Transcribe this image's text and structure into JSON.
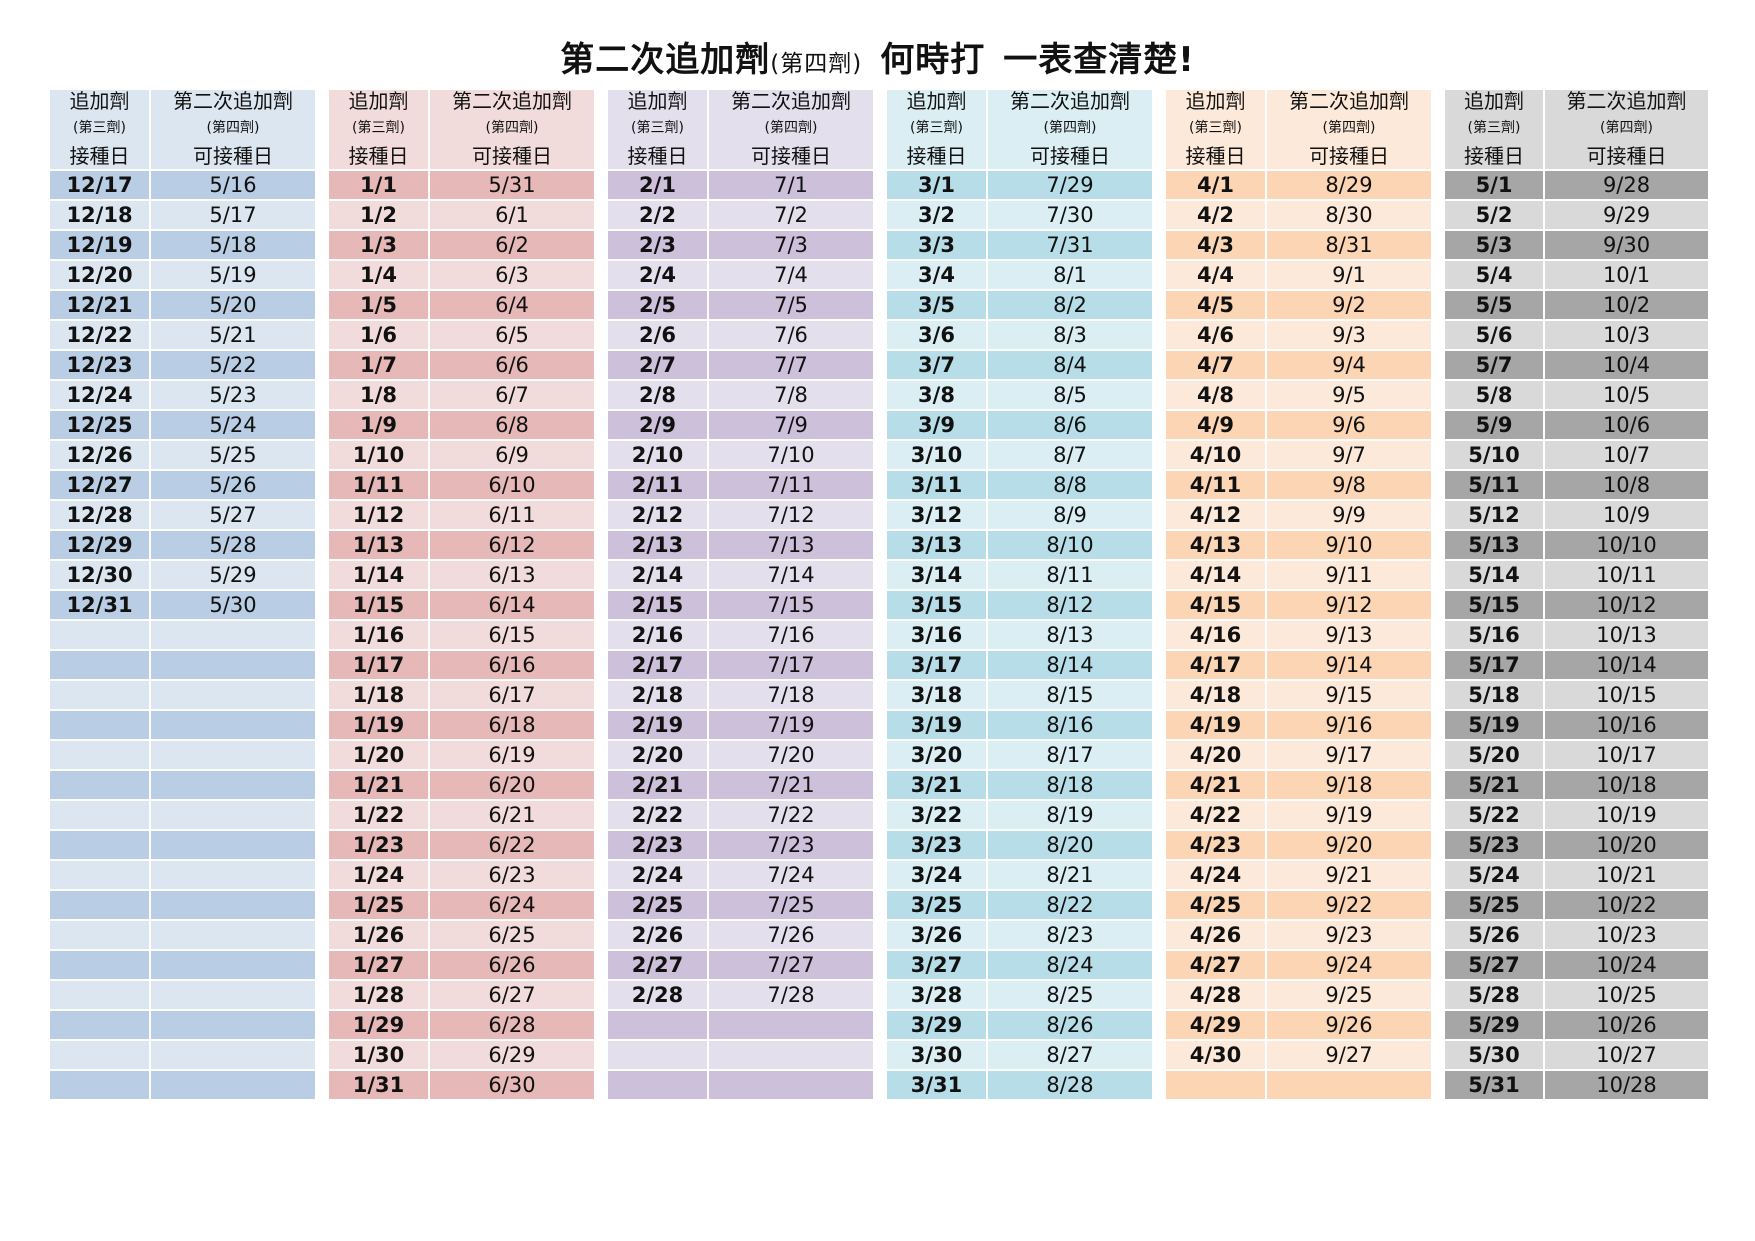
{
  "title": {
    "main": "第二次追加劑",
    "paren": "(第四劑)",
    "part2": "何時打",
    "part3": "一表查清楚!"
  },
  "header": {
    "c1_line1": "追加劑",
    "c1_line2": "(第三劑)",
    "c1_line3": "接種日",
    "c2_line1": "第二次追加劑",
    "c2_line2": "(第四劑)",
    "c2_line3": "可接種日"
  },
  "colors": {
    "dec": {
      "odd": "#b9cde4",
      "even": "#dce6f1"
    },
    "jan": {
      "odd": "#e6b9b8",
      "even": "#f2dcdb"
    },
    "feb": {
      "odd": "#ccc0da",
      "even": "#e4dfec"
    },
    "mar": {
      "odd": "#b7dee8",
      "even": "#daeef3"
    },
    "apr": {
      "odd": "#fcd5b4",
      "even": "#fde9d9"
    },
    "may": {
      "odd": "#a6a6a6",
      "even": "#d9d9d9"
    }
  },
  "groups": [
    {
      "key": "dec",
      "rows": [
        [
          "12/17",
          "5/16"
        ],
        [
          "12/18",
          "5/17"
        ],
        [
          "12/19",
          "5/18"
        ],
        [
          "12/20",
          "5/19"
        ],
        [
          "12/21",
          "5/20"
        ],
        [
          "12/22",
          "5/21"
        ],
        [
          "12/23",
          "5/22"
        ],
        [
          "12/24",
          "5/23"
        ],
        [
          "12/25",
          "5/24"
        ],
        [
          "12/26",
          "5/25"
        ],
        [
          "12/27",
          "5/26"
        ],
        [
          "12/28",
          "5/27"
        ],
        [
          "12/29",
          "5/28"
        ],
        [
          "12/30",
          "5/29"
        ],
        [
          "12/31",
          "5/30"
        ],
        [
          "",
          ""
        ],
        [
          "",
          ""
        ],
        [
          "",
          ""
        ],
        [
          "",
          ""
        ],
        [
          "",
          ""
        ],
        [
          "",
          ""
        ],
        [
          "",
          ""
        ],
        [
          "",
          ""
        ],
        [
          "",
          ""
        ],
        [
          "",
          ""
        ],
        [
          "",
          ""
        ],
        [
          "",
          ""
        ],
        [
          "",
          ""
        ],
        [
          "",
          ""
        ],
        [
          "",
          ""
        ],
        [
          "",
          ""
        ]
      ]
    },
    {
      "key": "jan",
      "rows": [
        [
          "1/1",
          "5/31"
        ],
        [
          "1/2",
          "6/1"
        ],
        [
          "1/3",
          "6/2"
        ],
        [
          "1/4",
          "6/3"
        ],
        [
          "1/5",
          "6/4"
        ],
        [
          "1/6",
          "6/5"
        ],
        [
          "1/7",
          "6/6"
        ],
        [
          "1/8",
          "6/7"
        ],
        [
          "1/9",
          "6/8"
        ],
        [
          "1/10",
          "6/9"
        ],
        [
          "1/11",
          "6/10"
        ],
        [
          "1/12",
          "6/11"
        ],
        [
          "1/13",
          "6/12"
        ],
        [
          "1/14",
          "6/13"
        ],
        [
          "1/15",
          "6/14"
        ],
        [
          "1/16",
          "6/15"
        ],
        [
          "1/17",
          "6/16"
        ],
        [
          "1/18",
          "6/17"
        ],
        [
          "1/19",
          "6/18"
        ],
        [
          "1/20",
          "6/19"
        ],
        [
          "1/21",
          "6/20"
        ],
        [
          "1/22",
          "6/21"
        ],
        [
          "1/23",
          "6/22"
        ],
        [
          "1/24",
          "6/23"
        ],
        [
          "1/25",
          "6/24"
        ],
        [
          "1/26",
          "6/25"
        ],
        [
          "1/27",
          "6/26"
        ],
        [
          "1/28",
          "6/27"
        ],
        [
          "1/29",
          "6/28"
        ],
        [
          "1/30",
          "6/29"
        ],
        [
          "1/31",
          "6/30"
        ]
      ]
    },
    {
      "key": "feb",
      "rows": [
        [
          "2/1",
          "7/1"
        ],
        [
          "2/2",
          "7/2"
        ],
        [
          "2/3",
          "7/3"
        ],
        [
          "2/4",
          "7/4"
        ],
        [
          "2/5",
          "7/5"
        ],
        [
          "2/6",
          "7/6"
        ],
        [
          "2/7",
          "7/7"
        ],
        [
          "2/8",
          "7/8"
        ],
        [
          "2/9",
          "7/9"
        ],
        [
          "2/10",
          "7/10"
        ],
        [
          "2/11",
          "7/11"
        ],
        [
          "2/12",
          "7/12"
        ],
        [
          "2/13",
          "7/13"
        ],
        [
          "2/14",
          "7/14"
        ],
        [
          "2/15",
          "7/15"
        ],
        [
          "2/16",
          "7/16"
        ],
        [
          "2/17",
          "7/17"
        ],
        [
          "2/18",
          "7/18"
        ],
        [
          "2/19",
          "7/19"
        ],
        [
          "2/20",
          "7/20"
        ],
        [
          "2/21",
          "7/21"
        ],
        [
          "2/22",
          "7/22"
        ],
        [
          "2/23",
          "7/23"
        ],
        [
          "2/24",
          "7/24"
        ],
        [
          "2/25",
          "7/25"
        ],
        [
          "2/26",
          "7/26"
        ],
        [
          "2/27",
          "7/27"
        ],
        [
          "2/28",
          "7/28"
        ],
        [
          "",
          ""
        ],
        [
          "",
          ""
        ],
        [
          "",
          ""
        ]
      ]
    },
    {
      "key": "mar",
      "rows": [
        [
          "3/1",
          "7/29"
        ],
        [
          "3/2",
          "7/30"
        ],
        [
          "3/3",
          "7/31"
        ],
        [
          "3/4",
          "8/1"
        ],
        [
          "3/5",
          "8/2"
        ],
        [
          "3/6",
          "8/3"
        ],
        [
          "3/7",
          "8/4"
        ],
        [
          "3/8",
          "8/5"
        ],
        [
          "3/9",
          "8/6"
        ],
        [
          "3/10",
          "8/7"
        ],
        [
          "3/11",
          "8/8"
        ],
        [
          "3/12",
          "8/9"
        ],
        [
          "3/13",
          "8/10"
        ],
        [
          "3/14",
          "8/11"
        ],
        [
          "3/15",
          "8/12"
        ],
        [
          "3/16",
          "8/13"
        ],
        [
          "3/17",
          "8/14"
        ],
        [
          "3/18",
          "8/15"
        ],
        [
          "3/19",
          "8/16"
        ],
        [
          "3/20",
          "8/17"
        ],
        [
          "3/21",
          "8/18"
        ],
        [
          "3/22",
          "8/19"
        ],
        [
          "3/23",
          "8/20"
        ],
        [
          "3/24",
          "8/21"
        ],
        [
          "3/25",
          "8/22"
        ],
        [
          "3/26",
          "8/23"
        ],
        [
          "3/27",
          "8/24"
        ],
        [
          "3/28",
          "8/25"
        ],
        [
          "3/29",
          "8/26"
        ],
        [
          "3/30",
          "8/27"
        ],
        [
          "3/31",
          "8/28"
        ]
      ]
    },
    {
      "key": "apr",
      "rows": [
        [
          "4/1",
          "8/29"
        ],
        [
          "4/2",
          "8/30"
        ],
        [
          "4/3",
          "8/31"
        ],
        [
          "4/4",
          "9/1"
        ],
        [
          "4/5",
          "9/2"
        ],
        [
          "4/6",
          "9/3"
        ],
        [
          "4/7",
          "9/4"
        ],
        [
          "4/8",
          "9/5"
        ],
        [
          "4/9",
          "9/6"
        ],
        [
          "4/10",
          "9/7"
        ],
        [
          "4/11",
          "9/8"
        ],
        [
          "4/12",
          "9/9"
        ],
        [
          "4/13",
          "9/10"
        ],
        [
          "4/14",
          "9/11"
        ],
        [
          "4/15",
          "9/12"
        ],
        [
          "4/16",
          "9/13"
        ],
        [
          "4/17",
          "9/14"
        ],
        [
          "4/18",
          "9/15"
        ],
        [
          "4/19",
          "9/16"
        ],
        [
          "4/20",
          "9/17"
        ],
        [
          "4/21",
          "9/18"
        ],
        [
          "4/22",
          "9/19"
        ],
        [
          "4/23",
          "9/20"
        ],
        [
          "4/24",
          "9/21"
        ],
        [
          "4/25",
          "9/22"
        ],
        [
          "4/26",
          "9/23"
        ],
        [
          "4/27",
          "9/24"
        ],
        [
          "4/28",
          "9/25"
        ],
        [
          "4/29",
          "9/26"
        ],
        [
          "4/30",
          "9/27"
        ],
        [
          "",
          ""
        ]
      ]
    },
    {
      "key": "may",
      "rows": [
        [
          "5/1",
          "9/28"
        ],
        [
          "5/2",
          "9/29"
        ],
        [
          "5/3",
          "9/30"
        ],
        [
          "5/4",
          "10/1"
        ],
        [
          "5/5",
          "10/2"
        ],
        [
          "5/6",
          "10/3"
        ],
        [
          "5/7",
          "10/4"
        ],
        [
          "5/8",
          "10/5"
        ],
        [
          "5/9",
          "10/6"
        ],
        [
          "5/10",
          "10/7"
        ],
        [
          "5/11",
          "10/8"
        ],
        [
          "5/12",
          "10/9"
        ],
        [
          "5/13",
          "10/10"
        ],
        [
          "5/14",
          "10/11"
        ],
        [
          "5/15",
          "10/12"
        ],
        [
          "5/16",
          "10/13"
        ],
        [
          "5/17",
          "10/14"
        ],
        [
          "5/18",
          "10/15"
        ],
        [
          "5/19",
          "10/16"
        ],
        [
          "5/20",
          "10/17"
        ],
        [
          "5/21",
          "10/18"
        ],
        [
          "5/22",
          "10/19"
        ],
        [
          "5/23",
          "10/20"
        ],
        [
          "5/24",
          "10/21"
        ],
        [
          "5/25",
          "10/22"
        ],
        [
          "5/26",
          "10/23"
        ],
        [
          "5/27",
          "10/24"
        ],
        [
          "5/28",
          "10/25"
        ],
        [
          "5/29",
          "10/26"
        ],
        [
          "5/30",
          "10/27"
        ],
        [
          "5/31",
          "10/28"
        ]
      ]
    }
  ]
}
